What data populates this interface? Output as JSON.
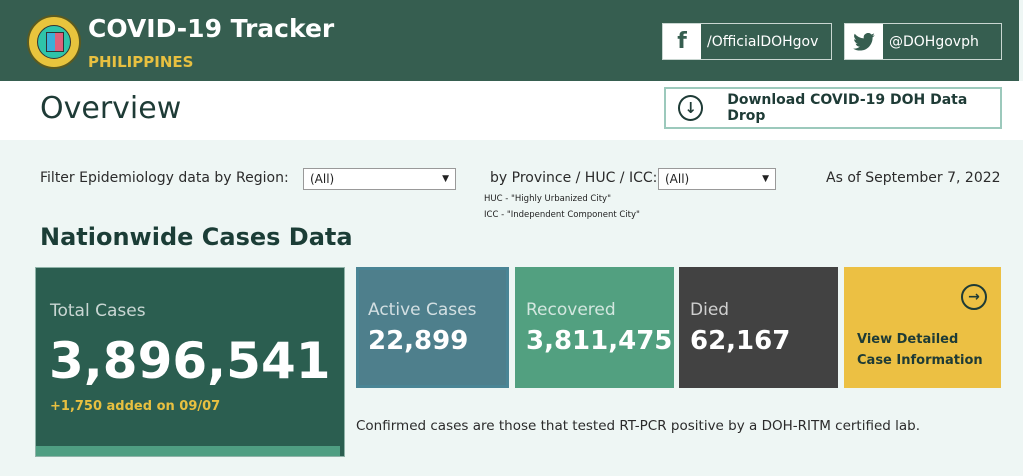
{
  "header": {
    "title": "COVID-19 Tracker",
    "subtitle": "PHILIPPINES",
    "facebook": {
      "icon": "facebook-icon",
      "label": "/OfficialDOHgov"
    },
    "twitter": {
      "icon": "twitter-icon",
      "label": "@DOHgovph"
    }
  },
  "overview": {
    "title": "Overview",
    "download_label": "Download COVID-19 DOH Data Drop"
  },
  "filters": {
    "region_label": "Filter Epidemiology data by Region:",
    "region_value": "(All)",
    "province_label": "by Province / HUC / ICC:",
    "province_value": "(All)",
    "huc_note": "HUC - \"Highly Urbanized City\"",
    "icc_note": "ICC - \"Independent Component City\"",
    "as_of": "As of September 7, 2022"
  },
  "section_title": "Nationwide Cases Data",
  "cards": {
    "total": {
      "label": "Total Cases",
      "value": "3,896,541",
      "added": "+1,750 added on 09/07",
      "color": "#2b5e50"
    },
    "active": {
      "label": "Active Cases",
      "value": "22,899",
      "color": "#4e7f8c"
    },
    "recovered": {
      "label": "Recovered",
      "value": "3,811,475",
      "color": "#52a080"
    },
    "died": {
      "label": "Died",
      "value": "62,167",
      "color": "#424242"
    },
    "detail": {
      "label_line1": "View Detailed",
      "label_line2": "Case Information",
      "color": "#ecc043"
    }
  },
  "caption": "Confirmed cases are those that tested RT-PCR positive by a DOH-RITM certified lab."
}
